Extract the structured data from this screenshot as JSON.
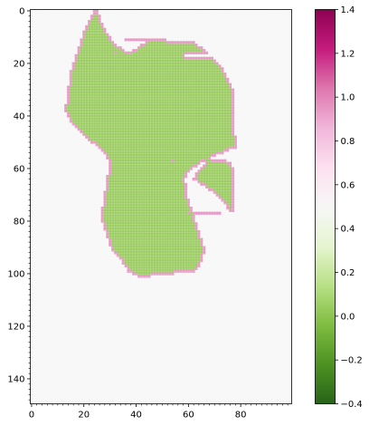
{
  "chart_data": {
    "type": "heatmap",
    "title": "",
    "xlabel": "",
    "ylabel": "",
    "colormap": "PiYG_r",
    "xlim": [
      0,
      100
    ],
    "ylim": [
      150,
      0
    ],
    "x_ticks": [
      0,
      20,
      40,
      60,
      80
    ],
    "y_ticks": [
      0,
      20,
      40,
      60,
      80,
      100,
      120,
      140
    ],
    "x_tick_labels": [
      "0",
      "20",
      "40",
      "60",
      "80"
    ],
    "y_tick_labels": [
      "0",
      "20",
      "40",
      "60",
      "80",
      "100",
      "120",
      "140"
    ],
    "colorbar": {
      "range": [
        -0.4,
        1.4
      ],
      "ticks": [
        -0.4,
        -0.2,
        0.0,
        0.2,
        0.4,
        0.6,
        0.8,
        1.0,
        1.2,
        1.4
      ],
      "tick_labels": [
        "−0.4",
        "−0.2",
        "0.0",
        "0.2",
        "0.4",
        "0.6",
        "0.8",
        "1.0",
        "1.2",
        "1.4"
      ]
    },
    "value_classes": [
      {
        "value": 0.5,
        "color": "#f7f7f7",
        "meaning": "background"
      },
      {
        "value": 0.0,
        "color": "#9bcc61",
        "meaning": "interior"
      },
      {
        "value": 1.0,
        "color": "#e898c8",
        "meaning": "boundary"
      }
    ],
    "shape_rows": [
      {
        "y": 0,
        "spans": [
          [
            24,
            25
          ]
        ]
      },
      {
        "y": 3,
        "spans": [
          [
            23,
            26
          ]
        ]
      },
      {
        "y": 6,
        "spans": [
          [
            21,
            27
          ]
        ]
      },
      {
        "y": 9,
        "spans": [
          [
            20,
            29
          ]
        ]
      },
      {
        "y": 12,
        "spans": [
          [
            19,
            31
          ],
          [
            44,
            62
          ]
        ]
      },
      {
        "y": 15,
        "spans": [
          [
            18,
            35
          ],
          [
            39,
            66
          ]
        ]
      },
      {
        "y": 18,
        "spans": [
          [
            17,
            69
          ]
        ]
      },
      {
        "y": 21,
        "spans": [
          [
            16,
            72
          ]
        ]
      },
      {
        "y": 24,
        "spans": [
          [
            15,
            74
          ]
        ]
      },
      {
        "y": 27,
        "spans": [
          [
            15,
            75
          ]
        ]
      },
      {
        "y": 30,
        "spans": [
          [
            14,
            77
          ]
        ]
      },
      {
        "y": 34,
        "spans": [
          [
            14,
            77
          ]
        ]
      },
      {
        "y": 37,
        "spans": [
          [
            13,
            77
          ]
        ]
      },
      {
        "y": 40,
        "spans": [
          [
            14,
            77
          ]
        ]
      },
      {
        "y": 43,
        "spans": [
          [
            16,
            77
          ]
        ]
      },
      {
        "y": 46,
        "spans": [
          [
            19,
            77
          ]
        ]
      },
      {
        "y": 49,
        "spans": [
          [
            22,
            78
          ]
        ]
      },
      {
        "y": 52,
        "spans": [
          [
            26,
            78
          ]
        ]
      },
      {
        "y": 55,
        "spans": [
          [
            29,
            70
          ]
        ]
      },
      {
        "y": 58,
        "spans": [
          [
            30,
            64
          ],
          [
            67,
            76
          ]
        ]
      },
      {
        "y": 61,
        "spans": [
          [
            30,
            60
          ],
          [
            64,
            77
          ]
        ]
      },
      {
        "y": 64,
        "spans": [
          [
            29,
            58
          ],
          [
            62,
            77
          ]
        ]
      },
      {
        "y": 67,
        "spans": [
          [
            29,
            59
          ],
          [
            67,
            77
          ]
        ]
      },
      {
        "y": 70,
        "spans": [
          [
            28,
            59
          ],
          [
            71,
            77
          ]
        ]
      },
      {
        "y": 73,
        "spans": [
          [
            28,
            60
          ],
          [
            74,
            77
          ]
        ]
      },
      {
        "y": 76,
        "spans": [
          [
            27,
            61
          ],
          [
            76,
            77
          ]
        ]
      },
      {
        "y": 79,
        "spans": [
          [
            27,
            62
          ]
        ]
      },
      {
        "y": 82,
        "spans": [
          [
            28,
            63
          ]
        ]
      },
      {
        "y": 85,
        "spans": [
          [
            29,
            64
          ]
        ]
      },
      {
        "y": 88,
        "spans": [
          [
            30,
            65
          ]
        ]
      },
      {
        "y": 91,
        "spans": [
          [
            31,
            66
          ]
        ]
      },
      {
        "y": 94,
        "spans": [
          [
            34,
            65
          ]
        ]
      },
      {
        "y": 97,
        "spans": [
          [
            36,
            64
          ]
        ]
      },
      {
        "y": 99,
        "spans": [
          [
            37,
            62
          ]
        ]
      },
      {
        "y": 101,
        "spans": [
          [
            41,
            45
          ]
        ]
      }
    ]
  }
}
